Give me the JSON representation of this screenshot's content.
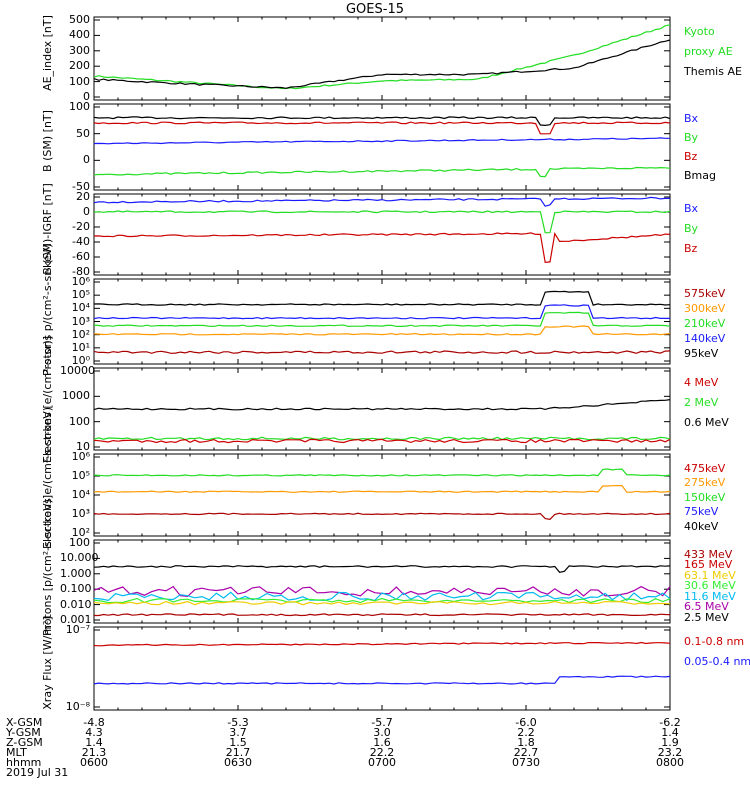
{
  "title": "GOES-15",
  "colors": {
    "black": "#000000",
    "green": "#22dd22",
    "blue": "#1a1aff",
    "red": "#cc0000",
    "orange": "#ff9900",
    "darkred": "#aa0000",
    "cyan": "#00bbee",
    "yellow": "#eecc00",
    "purple": "#aa00aa",
    "lightgreen": "#33ee33"
  },
  "chart_data": [
    {
      "type": "line",
      "panel": "ae",
      "ylabel": "AE_index [nT]",
      "yticks": [
        "500",
        "400",
        "300",
        "200",
        "100",
        "0"
      ],
      "series": [
        {
          "name": "Kyoto proxy AE",
          "color": "green",
          "x": [
            0,
            20,
            40,
            60,
            80,
            100,
            120
          ],
          "values": [
            150,
            110,
            70,
            120,
            130,
            280,
            470
          ]
        },
        {
          "name": "Themis AE",
          "color": "black",
          "x": [
            0,
            20,
            40,
            60,
            80,
            100,
            120
          ],
          "values": [
            130,
            100,
            75,
            160,
            160,
            200,
            380
          ]
        }
      ],
      "legend": [
        "Kyoto proxy AE",
        "Themis AE"
      ],
      "ylim": [
        0,
        520
      ]
    },
    {
      "type": "line",
      "panel": "bsm",
      "ylabel": "B (SM) [nT]",
      "yticks": [
        "100",
        "50",
        "0",
        "-50"
      ],
      "legend": [
        "Bx",
        "By",
        "Bz",
        "Bmag"
      ],
      "ylim": [
        -60,
        100
      ]
    },
    {
      "type": "line",
      "panel": "bigrf",
      "ylabel": "B (SM)-IGRF [nT]",
      "yticks": [
        "20",
        "0",
        "-20",
        "-40",
        "-60",
        "-80"
      ],
      "legend": [
        "Bx",
        "By",
        "Bz"
      ],
      "ylim": [
        -80,
        20
      ]
    },
    {
      "type": "line",
      "panel": "protons1",
      "ylabel": "Protons p/(cm²-s-sr-keV)",
      "yticks": [
        "10⁶",
        "10⁵",
        "10⁴",
        "10³",
        "10²",
        "10¹",
        "10⁰"
      ],
      "legend": [
        "575keV",
        "300keV",
        "210keV",
        "140keV",
        "95keV"
      ],
      "log": true
    },
    {
      "type": "line",
      "panel": "electrons1",
      "ylabel": "Electrons [e/(cm²-s-sr)]",
      "yticks": [
        "10000",
        "1000",
        "100",
        "10"
      ],
      "legend": [
        "4 MeV",
        "2 MeV",
        "0.6 MeV"
      ],
      "log": true
    },
    {
      "type": "line",
      "panel": "electrons2",
      "ylabel": "Electrons e/(cm²-s-sr-keV)",
      "yticks": [
        "10⁶",
        "10⁵",
        "10⁴",
        "10³",
        "10²"
      ],
      "legend": [
        "475keV",
        "275keV",
        "150keV",
        "75keV",
        "40keV"
      ],
      "log": true
    },
    {
      "type": "line",
      "panel": "protons2",
      "ylabel": "Protons [p/(cm²-s-sr-keV)]",
      "yticks": [
        "100",
        "10.000",
        "1.000",
        "0.100",
        "0.010",
        "0.001"
      ],
      "legend": [
        "433 MeV",
        "165 MeV",
        "63.1 MeV",
        "30.6 MeV",
        "11.6 MeV",
        "6.5 MeV",
        "2.5 MeV"
      ],
      "log": true
    },
    {
      "type": "line",
      "panel": "xray",
      "ylabel": "Xray Flux [W/m²]",
      "yticks": [
        "10⁻⁷",
        "10⁻⁸"
      ],
      "legend": [
        "0.1-0.8 nm",
        "0.05-0.4 nm"
      ],
      "log": true
    }
  ],
  "legends": {
    "ae": [
      {
        "t": "Kyoto",
        "c": "green"
      },
      {
        "t": "proxy AE",
        "c": "green"
      },
      {
        "t": "Themis AE",
        "c": "black"
      }
    ],
    "bsm": [
      {
        "t": "Bx",
        "c": "blue"
      },
      {
        "t": "By",
        "c": "green"
      },
      {
        "t": "Bz",
        "c": "red"
      },
      {
        "t": "Bmag",
        "c": "black"
      }
    ],
    "bigrf": [
      {
        "t": "Bx",
        "c": "blue"
      },
      {
        "t": "By",
        "c": "green"
      },
      {
        "t": "Bz",
        "c": "red"
      }
    ],
    "protons1": [
      {
        "t": "575keV",
        "c": "darkred"
      },
      {
        "t": "300keV",
        "c": "orange"
      },
      {
        "t": "210keV",
        "c": "green"
      },
      {
        "t": "140keV",
        "c": "blue"
      },
      {
        "t": "95keV",
        "c": "black"
      }
    ],
    "electrons1": [
      {
        "t": "4 MeV",
        "c": "red"
      },
      {
        "t": "2 MeV",
        "c": "green"
      },
      {
        "t": "0.6 MeV",
        "c": "black"
      }
    ],
    "electrons2": [
      {
        "t": "475keV",
        "c": "red"
      },
      {
        "t": "275keV",
        "c": "orange"
      },
      {
        "t": "150keV",
        "c": "green"
      },
      {
        "t": "75keV",
        "c": "blue"
      },
      {
        "t": "40keV",
        "c": "black"
      }
    ],
    "protons2": [
      {
        "t": "433 MeV",
        "c": "darkred"
      },
      {
        "t": "165 MeV",
        "c": "red"
      },
      {
        "t": "63.1 MeV",
        "c": "yellow"
      },
      {
        "t": "30.6 MeV",
        "c": "lightgreen"
      },
      {
        "t": "11.6 MeV",
        "c": "cyan"
      },
      {
        "t": "6.5 MeV",
        "c": "purple"
      },
      {
        "t": "2.5 MeV",
        "c": "black"
      }
    ],
    "xray": [
      {
        "t": "0.1-0.8 nm",
        "c": "red"
      },
      {
        "t": "0.05-0.4 nm",
        "c": "blue"
      }
    ]
  },
  "ephemeris": {
    "labels": [
      "X-GSM",
      "Y-GSM",
      "Z-GSM",
      "MLT",
      "hhmm",
      "2019 Jul 31"
    ],
    "columns": [
      [
        "-4.8",
        "4.3",
        "1.4",
        "21.3",
        "0600"
      ],
      [
        "-5.3",
        "3.7",
        "1.5",
        "21.7",
        "0630"
      ],
      [
        "-5.7",
        "3.0",
        "1.6",
        "22.2",
        "0700"
      ],
      [
        "-6.0",
        "2.2",
        "1.8",
        "22.7",
        "0730"
      ],
      [
        "-6.2",
        "1.4",
        "1.9",
        "23.2",
        "0800"
      ]
    ]
  }
}
